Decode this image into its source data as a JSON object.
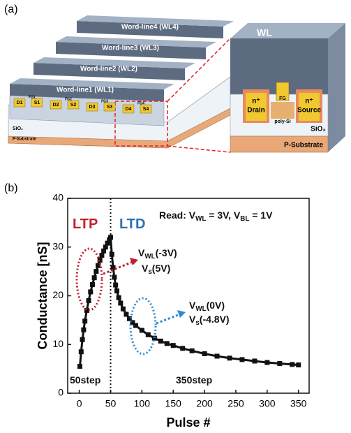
{
  "panel_a": {
    "label": "(a)",
    "word_lines": [
      "Word-line4 (WL4)",
      "Word-line3 (WL3)",
      "Word-line2 (WL2)",
      "Word-line1 (WL1)"
    ],
    "cells": [
      "D1",
      "S1",
      "D2",
      "S2",
      "D3",
      "S3",
      "D4",
      "S4"
    ],
    "floating_gates": [
      "FG1",
      "FG2",
      "FG3",
      "FG4"
    ],
    "oxide": "SiO₂",
    "substrate": "P-Substrate",
    "zoom": {
      "gate": "WL",
      "floating_gate": "FG",
      "drain": [
        "n⁺",
        "Drain"
      ],
      "channel": "poly-Si",
      "source": [
        "n⁺",
        "Source"
      ],
      "oxide": "SiO₂",
      "substrate": "P-Substrate"
    }
  },
  "chart_data": {
    "type": "scatter",
    "panel_label": "(b)",
    "x_label": "Pulse #",
    "y_label": "Conductance [nS]",
    "xlim": [
      -18.5,
      367
    ],
    "xticks": [
      0,
      50,
      100,
      150,
      200,
      250,
      300,
      350
    ],
    "ylim": [
      0,
      40
    ],
    "yticks": [
      0,
      10,
      20,
      30,
      40
    ],
    "divider_x": 50,
    "series": [
      {
        "color": "#111111",
        "x": [
          1,
          3,
          5,
          7,
          9,
          12,
          15,
          18,
          21,
          24,
          27,
          30,
          33,
          36,
          39,
          42,
          45,
          48,
          50,
          52,
          54,
          56,
          58,
          60,
          63,
          66,
          70,
          75,
          80,
          85,
          90,
          100,
          110,
          120,
          130,
          140,
          150,
          165,
          180,
          200,
          220,
          240,
          260,
          280,
          300,
          320,
          340,
          350
        ],
        "values": [
          5.5,
          8.5,
          11,
          13,
          14.8,
          17,
          19,
          20.8,
          22.3,
          23.7,
          25,
          26.2,
          27.3,
          28.3,
          29.2,
          30,
          30.8,
          31.5,
          32,
          28.5,
          25.8,
          23.8,
          22.2,
          21,
          19.6,
          18.5,
          17.3,
          16.2,
          15.3,
          14.5,
          13.9,
          12.9,
          12,
          11.3,
          10.7,
          10.2,
          9.8,
          9.2,
          8.7,
          8.1,
          7.6,
          7.2,
          6.9,
          6.6,
          6.3,
          6.1,
          5.9,
          5.8
        ]
      }
    ],
    "annotations": [
      {
        "parts": [
          "LTP"
        ],
        "color": "#c0202a"
      },
      {
        "parts": [
          "LTD"
        ],
        "color": "#2e6fb5"
      },
      {
        "parts": [
          "Read: V",
          "WL",
          " = 3V, V",
          "BL",
          " = 1V"
        ],
        "color": "#111111"
      },
      {
        "parts": [
          "V",
          "WL",
          "(-3V)"
        ],
        "color": "#111111"
      },
      {
        "parts": [
          "V",
          "s",
          "(5V)"
        ],
        "color": "#111111"
      },
      {
        "parts": [
          "V",
          "WL",
          "(0V)"
        ],
        "color": "#111111"
      },
      {
        "parts": [
          "V",
          "s",
          "(-4.8V)"
        ],
        "color": "#111111"
      },
      {
        "parts": [
          "50step"
        ],
        "color": "#111111"
      },
      {
        "parts": [
          "350step"
        ],
        "color": "#111111"
      }
    ]
  }
}
